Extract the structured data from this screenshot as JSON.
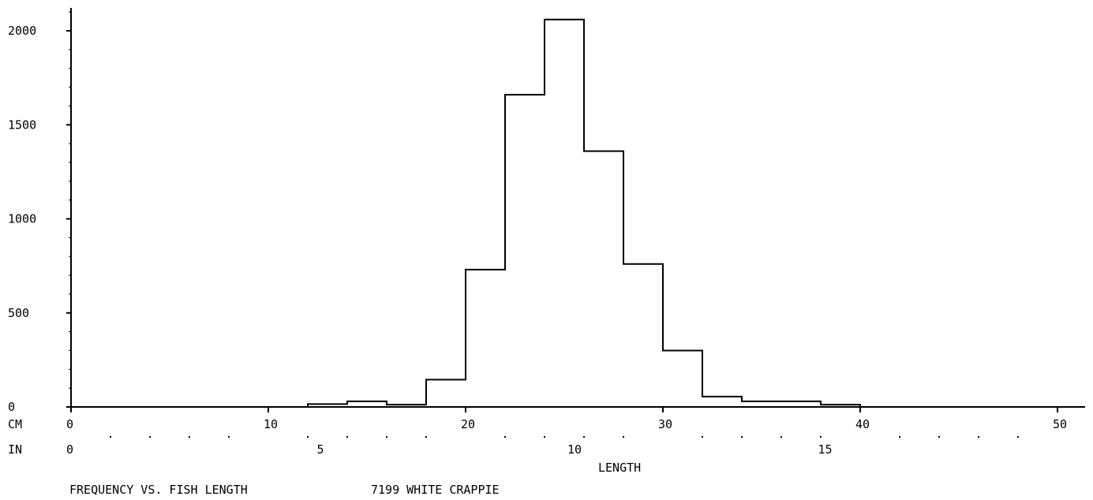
{
  "chart_data": {
    "type": "histogram",
    "title": "FREQUENCY VS. FISH LENGTH",
    "subtitle": "7199 WHITE CRAPPIE",
    "xlabel": "LENGTH",
    "ylabel": "",
    "cm_axis_label": "CM",
    "in_axis_label": "IN",
    "xlim_cm": [
      0,
      51
    ],
    "ylim": [
      0,
      2150
    ],
    "bin_width_cm": 2,
    "bins": [
      {
        "start": 12,
        "end": 14,
        "value": 15
      },
      {
        "start": 14,
        "end": 16,
        "value": 30
      },
      {
        "start": 16,
        "end": 18,
        "value": 12
      },
      {
        "start": 18,
        "end": 20,
        "value": 145
      },
      {
        "start": 20,
        "end": 22,
        "value": 730
      },
      {
        "start": 22,
        "end": 24,
        "value": 1660
      },
      {
        "start": 24,
        "end": 26,
        "value": 2060
      },
      {
        "start": 26,
        "end": 28,
        "value": 1360
      },
      {
        "start": 28,
        "end": 30,
        "value": 760
      },
      {
        "start": 30,
        "end": 32,
        "value": 300
      },
      {
        "start": 32,
        "end": 34,
        "value": 55
      },
      {
        "start": 34,
        "end": 36,
        "value": 30
      },
      {
        "start": 36,
        "end": 38,
        "value": 30
      },
      {
        "start": 38,
        "end": 40,
        "value": 12
      }
    ],
    "y_ticks": [
      0,
      500,
      1000,
      1500,
      2000
    ],
    "y_tick_labels": [
      "0",
      "500",
      "1000",
      "1500",
      "2000"
    ],
    "cm_ticks": [
      0,
      10,
      20,
      30,
      40,
      50
    ],
    "cm_tick_labels": [
      "0",
      "10",
      "20",
      "30",
      "40",
      "50"
    ],
    "in_ticks": [
      0,
      5,
      10,
      15
    ],
    "in_tick_labels": [
      "0",
      "5",
      "10",
      "15"
    ],
    "grid": false,
    "legend": "none"
  }
}
